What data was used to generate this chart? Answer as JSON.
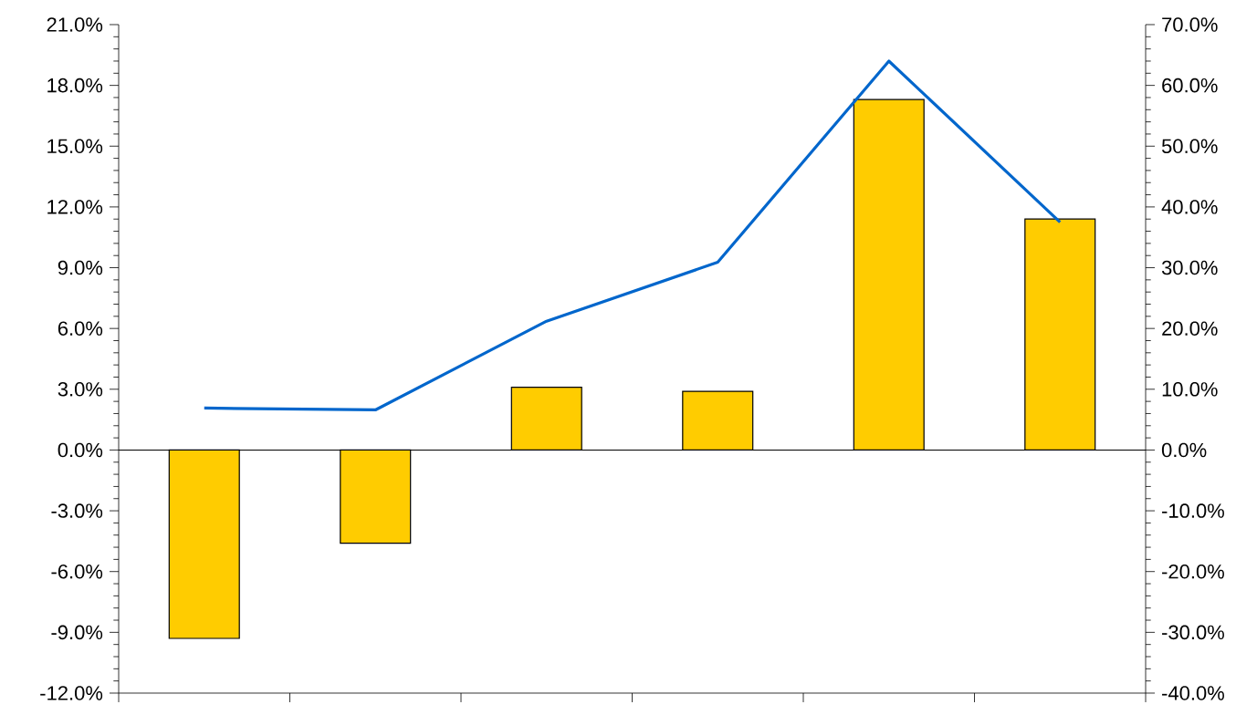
{
  "chart_data": {
    "type": "bar",
    "categories": [
      null,
      null,
      null,
      null,
      null,
      null
    ],
    "series": [
      {
        "color": "#ffcc00",
        "values": [
          -9.3,
          -4.6,
          3.1,
          2.9,
          17.3,
          11.4
        ]
      },
      {
        "type": "line",
        "axis": "y2",
        "color": "#0066cc",
        "values": [
          6.9,
          6.6,
          21.2,
          30.9,
          64.0,
          37.5
        ]
      }
    ],
    "ylim": [
      -12,
      21
    ],
    "yticks": [
      {
        "value": -12,
        "label": "-12.0%"
      },
      {
        "value": -9,
        "label": "-9.0%"
      },
      {
        "value": -6,
        "label": "-6.0%"
      },
      {
        "value": -3,
        "label": "-3.0%"
      },
      {
        "value": 0,
        "label": "0.0%"
      },
      {
        "value": 3,
        "label": "3.0%"
      },
      {
        "value": 6,
        "label": "6.0%"
      },
      {
        "value": 9,
        "label": "9.0%"
      },
      {
        "value": 12,
        "label": "12.0%"
      },
      {
        "value": 15,
        "label": "15.0%"
      },
      {
        "value": 18,
        "label": "18.0%"
      },
      {
        "value": 21,
        "label": "21.0%"
      }
    ],
    "y2lim": [
      -40,
      70
    ],
    "y2ticks": [
      {
        "value": -40,
        "label": "-40.0%"
      },
      {
        "value": -30,
        "label": "-30.0%"
      },
      {
        "value": -20,
        "label": "-20.0%"
      },
      {
        "value": -10,
        "label": "-10.0%"
      },
      {
        "value": 0,
        "label": "0.0%"
      },
      {
        "value": 10,
        "label": "10.0%"
      },
      {
        "value": 20,
        "label": "20.0%"
      },
      {
        "value": 30,
        "label": "30.0%"
      },
      {
        "value": 40,
        "label": "40.0%"
      },
      {
        "value": 50,
        "label": "50.0%"
      },
      {
        "value": 60,
        "label": "60.0%"
      },
      {
        "value": 70,
        "label": "70.0%"
      }
    ],
    "ref_lines": [
      {
        "axis": "y",
        "value": 0
      }
    ],
    "grid": false,
    "marker": "none",
    "line_style": "solid"
  }
}
